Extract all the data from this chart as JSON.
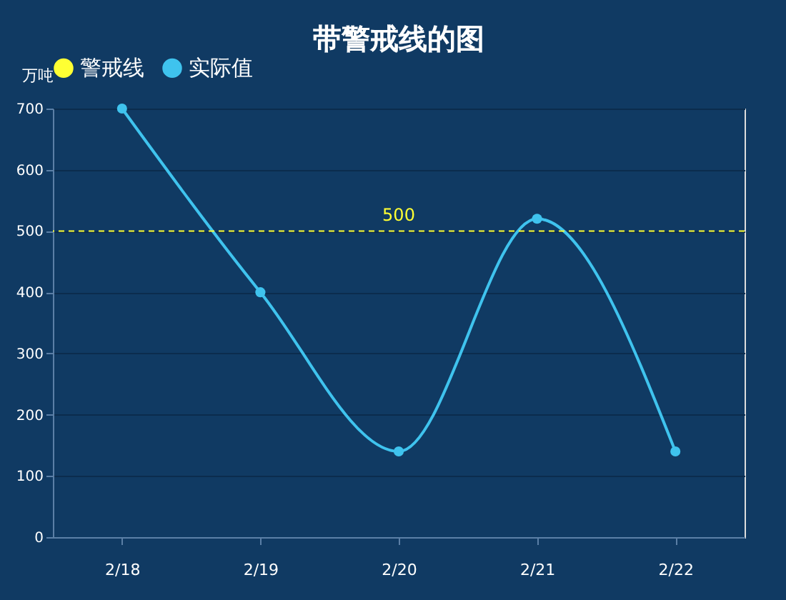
{
  "chart_data": {
    "type": "line",
    "title": "带警戒线的图",
    "ylabel": "万吨",
    "categories": [
      "2/18",
      "2/19",
      "2/20",
      "2/21",
      "2/22"
    ],
    "series": [
      {
        "name": "实际值",
        "color": "#3fc3ee",
        "values": [
          700,
          400,
          140,
          520,
          140
        ]
      }
    ],
    "ylim": [
      0,
      700
    ],
    "yticks": [
      0,
      100,
      200,
      300,
      400,
      500,
      600,
      700
    ],
    "grid": "y",
    "marker": "circle",
    "legend": "top",
    "ref_lines": [
      {
        "axis": "y",
        "value": 500,
        "label": "警戒线",
        "color": "#ffff33",
        "line_style": "dashed"
      }
    ],
    "annotations": [
      {
        "text": "500",
        "x": "2/20",
        "y": 500
      }
    ]
  }
}
